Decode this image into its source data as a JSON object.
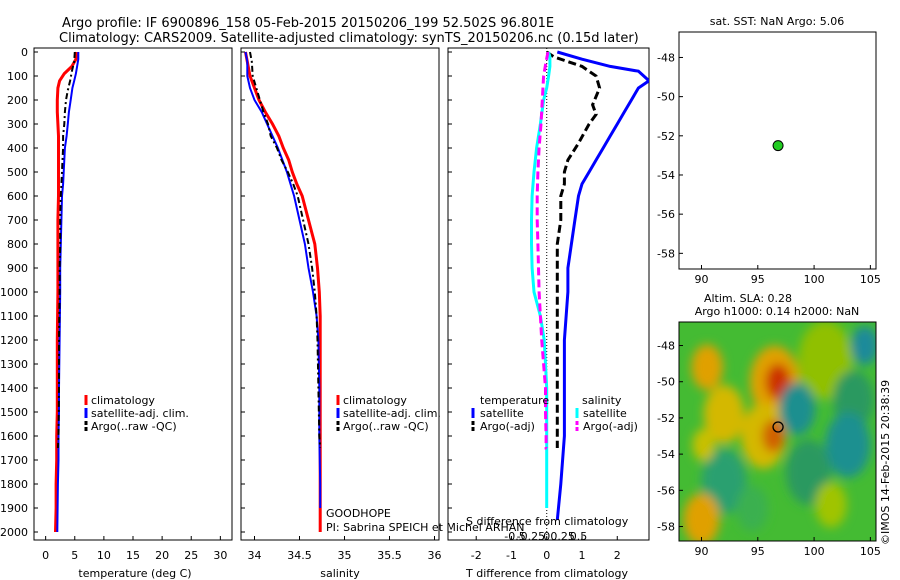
{
  "header": {
    "title_line1": "Argo profile: IF 6900896_158 05-Feb-2015 20150206_199 52.502S 96.801E",
    "title_line2": "Climatology: CARS2009. Satellite-adjusted climatology: synTS_20150206.nc (0.15d later)"
  },
  "colors": {
    "climatology": "#ff0000",
    "satellite": "#0000ff",
    "argo": "#000000",
    "sal_satellite": "#00ffff",
    "sal_argo": "#ff00ff",
    "marker": "#22cc22"
  },
  "depth_ticks": [
    "0",
    "100",
    "200",
    "300",
    "400",
    "500",
    "600",
    "700",
    "800",
    "900",
    "1000",
    "1100",
    "1200",
    "1300",
    "1400",
    "1500",
    "1600",
    "1700",
    "1800",
    "1900",
    "2000"
  ],
  "panels": {
    "temperature": {
      "xlabel": "temperature (deg C)",
      "xticks": [
        "0",
        "5",
        "10",
        "15",
        "20",
        "25",
        "30"
      ]
    },
    "salinity": {
      "xlabel": "salinity",
      "xticks": [
        "34",
        "34.5",
        "35",
        "35.5",
        "36"
      ],
      "note1": "GOODHOPE",
      "note2": "PI: Sabrina SPEICH et Michel ARHAN"
    },
    "difference": {
      "xlabel": "T difference from climatology",
      "xticks": [
        "-2",
        "-1",
        "0",
        "1",
        "2"
      ],
      "toplabel": "S difference from climatology",
      "sticks": [
        "-0.5",
        "-0.25",
        "0",
        "0.25",
        "0.5"
      ]
    },
    "sst_map": {
      "title": "sat. SST: NaN Argo: 5.06",
      "xticks": [
        "90",
        "95",
        "100",
        "105"
      ],
      "yticks": [
        "-48",
        "-50",
        "-52",
        "-54",
        "-56",
        "-58"
      ]
    },
    "sla_map": {
      "title1": "Altim. SLA: 0.28",
      "title2": "Argo h1000: 0.14 h2000: NaN",
      "xticks": [
        "90",
        "95",
        "100",
        "105"
      ],
      "yticks": [
        "-48",
        "-50",
        "-52",
        "-54",
        "-56",
        "-58"
      ],
      "stamp": "©IMOS 14-Feb-2015 20:38:39"
    }
  },
  "legend_profiles": [
    "climatology",
    "satellite-adj. clim.",
    "Argo(..raw -QC)"
  ],
  "legend_diff": {
    "head_t": "temperature",
    "head_s": "salinity",
    "t_items": [
      "satellite",
      "Argo(-adj)"
    ],
    "s_items": [
      "satellite",
      "Argo(-adj)"
    ]
  },
  "chart_data": [
    {
      "type": "line",
      "name": "temperature profile",
      "xlabel": "temperature (deg C)",
      "ylabel": "",
      "xlim": [
        -2,
        32
      ],
      "ylim": [
        2050,
        0
      ],
      "series": [
        {
          "name": "climatology",
          "x": [
            5.3,
            5.2,
            4.5,
            3.2,
            2.4,
            2.1,
            2.0,
            2.0,
            2.1,
            2.2,
            2.2,
            2.2,
            2.2,
            2.1,
            2.1,
            2.1,
            2.1,
            2.0,
            2.0,
            2.0,
            1.9,
            1.9,
            1.8,
            1.8,
            1.7
          ],
          "y": [
            0,
            30,
            60,
            90,
            120,
            150,
            200,
            250,
            300,
            350,
            400,
            500,
            600,
            700,
            800,
            900,
            1000,
            1200,
            1400,
            1500,
            1600,
            1700,
            1800,
            1900,
            2000
          ]
        },
        {
          "name": "satellite-adj. clim.",
          "x": [
            5.6,
            5.6,
            5.4,
            5.2,
            4.9,
            4.6,
            4.3,
            4.0,
            3.8,
            3.6,
            3.3,
            3.2,
            3.1,
            3.0,
            2.8,
            2.7,
            2.6,
            2.5,
            2.5,
            2.4,
            2.3,
            2.3,
            2.2,
            2.2,
            2.1,
            2.0
          ],
          "y": [
            0,
            30,
            60,
            90,
            120,
            150,
            200,
            250,
            300,
            350,
            400,
            450,
            500,
            550,
            600,
            700,
            800,
            900,
            1000,
            1200,
            1400,
            1500,
            1600,
            1700,
            1800,
            2000
          ]
        },
        {
          "name": "Argo(..raw -QC)",
          "x": [
            5.0,
            4.9,
            4.5,
            4.2,
            3.8,
            3.5,
            3.3,
            3.2,
            3.0,
            3.0,
            2.9,
            2.8,
            2.7,
            2.6,
            2.5,
            2.5,
            2.4,
            2.4,
            2.3,
            2.3,
            2.2,
            2.1
          ],
          "y": [
            0,
            40,
            80,
            120,
            160,
            200,
            250,
            300,
            350,
            400,
            450,
            500,
            550,
            600,
            700,
            800,
            900,
            1000,
            1200,
            1400,
            1600,
            1650
          ]
        }
      ]
    },
    {
      "type": "line",
      "name": "salinity profile",
      "xlabel": "salinity",
      "ylabel": "",
      "xlim": [
        33.85,
        36.05
      ],
      "ylim": [
        2050,
        0
      ],
      "series": [
        {
          "name": "climatology",
          "x": [
            33.9,
            33.92,
            33.95,
            34.0,
            34.05,
            34.12,
            34.2,
            34.27,
            34.32,
            34.38,
            34.42,
            34.47,
            34.53,
            34.6,
            34.67,
            34.7,
            34.72,
            34.73,
            34.73,
            34.73,
            34.73,
            34.73,
            34.73
          ],
          "y": [
            0,
            40,
            100,
            150,
            200,
            250,
            300,
            350,
            400,
            450,
            500,
            550,
            600,
            700,
            800,
            900,
            1000,
            1100,
            1200,
            1400,
            1600,
            1800,
            2000
          ]
        },
        {
          "name": "satellite-adj. clim.",
          "x": [
            33.9,
            33.92,
            33.92,
            33.95,
            34.0,
            34.08,
            34.14,
            34.2,
            34.26,
            34.31,
            34.36,
            34.4,
            34.44,
            34.5,
            34.56,
            34.6,
            34.65,
            34.69,
            34.71,
            34.72,
            34.72,
            34.73,
            34.73
          ],
          "y": [
            0,
            40,
            100,
            150,
            200,
            250,
            300,
            350,
            400,
            450,
            500,
            550,
            600,
            700,
            800,
            900,
            1000,
            1100,
            1200,
            1400,
            1600,
            1800,
            1900
          ]
        },
        {
          "name": "Argo(..raw -QC)",
          "x": [
            33.95,
            33.97,
            33.98,
            34.02,
            34.06,
            34.1,
            34.15,
            34.18,
            34.25,
            34.3,
            34.37,
            34.43,
            34.48,
            34.54,
            34.6,
            34.64,
            34.67,
            34.69,
            34.7,
            34.71,
            34.72,
            34.73
          ],
          "y": [
            0,
            40,
            100,
            150,
            200,
            250,
            300,
            350,
            400,
            450,
            500,
            550,
            600,
            700,
            800,
            900,
            1000,
            1100,
            1200,
            1400,
            1600,
            1650
          ]
        }
      ]
    },
    {
      "type": "line",
      "name": "difference from climatology",
      "xlabel": "T difference from climatology",
      "ylabel": "",
      "xlim": [
        -2.8,
        2.9
      ],
      "ylim": [
        2050,
        0
      ],
      "series": [
        {
          "name": "temperature satellite",
          "x": [
            0.3,
            1.0,
            1.8,
            2.6,
            2.9,
            2.6,
            2.4,
            2.2,
            2.0,
            1.8,
            1.6,
            1.4,
            1.2,
            1.0,
            0.9,
            0.8,
            0.7,
            0.6,
            0.6,
            0.5,
            0.5,
            0.5,
            0.4,
            0.3
          ],
          "y": [
            0,
            30,
            60,
            80,
            120,
            150,
            200,
            250,
            300,
            350,
            400,
            450,
            500,
            550,
            600,
            700,
            800,
            900,
            1000,
            1200,
            1400,
            1600,
            1800,
            1950
          ]
        },
        {
          "name": "temperature Argo(-adj)",
          "x": [
            0.0,
            0.2,
            0.6,
            1.0,
            1.4,
            1.5,
            1.3,
            1.4,
            1.2,
            0.9,
            0.6,
            0.5,
            0.5,
            0.4,
            0.4,
            0.3,
            0.3,
            0.3,
            0.3,
            0.3,
            0.3
          ],
          "y": [
            0,
            20,
            40,
            60,
            100,
            150,
            220,
            260,
            300,
            380,
            450,
            500,
            550,
            600,
            700,
            800,
            900,
            1000,
            1200,
            1400,
            1650
          ]
        },
        {
          "name": "salinity satellite",
          "x": [
            0.03,
            0.05,
            0.05,
            0.03,
            0.0,
            -0.05,
            -0.1,
            -0.16,
            -0.2,
            -0.23,
            -0.24,
            -0.24,
            -0.23,
            -0.2,
            -0.1,
            -0.04,
            -0.02,
            0.0,
            0.0,
            0.0,
            0.0,
            0.0
          ],
          "y": [
            0,
            20,
            60,
            100,
            150,
            200,
            300,
            400,
            500,
            600,
            700,
            800,
            900,
            1000,
            1100,
            1200,
            1300,
            1400,
            1500,
            1600,
            1800,
            1900
          ]
        },
        {
          "name": "salinity Argo(-adj)",
          "x": [
            0.02,
            -0.01,
            -0.05,
            -0.07,
            -0.09,
            -0.12,
            -0.14,
            -0.15,
            -0.15,
            -0.14,
            -0.13,
            -0.12,
            -0.1,
            -0.08,
            -0.05,
            -0.02,
            -0.02,
            -0.01,
            -0.01,
            0.0
          ],
          "y": [
            0,
            40,
            100,
            200,
            300,
            400,
            500,
            600,
            700,
            800,
            900,
            1000,
            1100,
            1200,
            1300,
            1400,
            1500,
            1600,
            1650,
            1650
          ]
        }
      ]
    },
    {
      "type": "scatter",
      "name": "sat. SST map",
      "title": "sat. SST: NaN Argo: 5.06",
      "xlim": [
        88,
        105.5
      ],
      "ylim": [
        -58.8,
        -46.7
      ],
      "x": [
        96.8
      ],
      "y": [
        -52.5
      ]
    },
    {
      "type": "heatmap",
      "name": "altimetry SLA map",
      "title": "Altim. SLA: 0.28 Argo h1000: 0.14 h2000: NaN",
      "xlim": [
        88,
        105.5
      ],
      "ylim": [
        -58.8,
        -46.7
      ],
      "marker": {
        "x": 96.8,
        "y": -52.5
      }
    }
  ]
}
